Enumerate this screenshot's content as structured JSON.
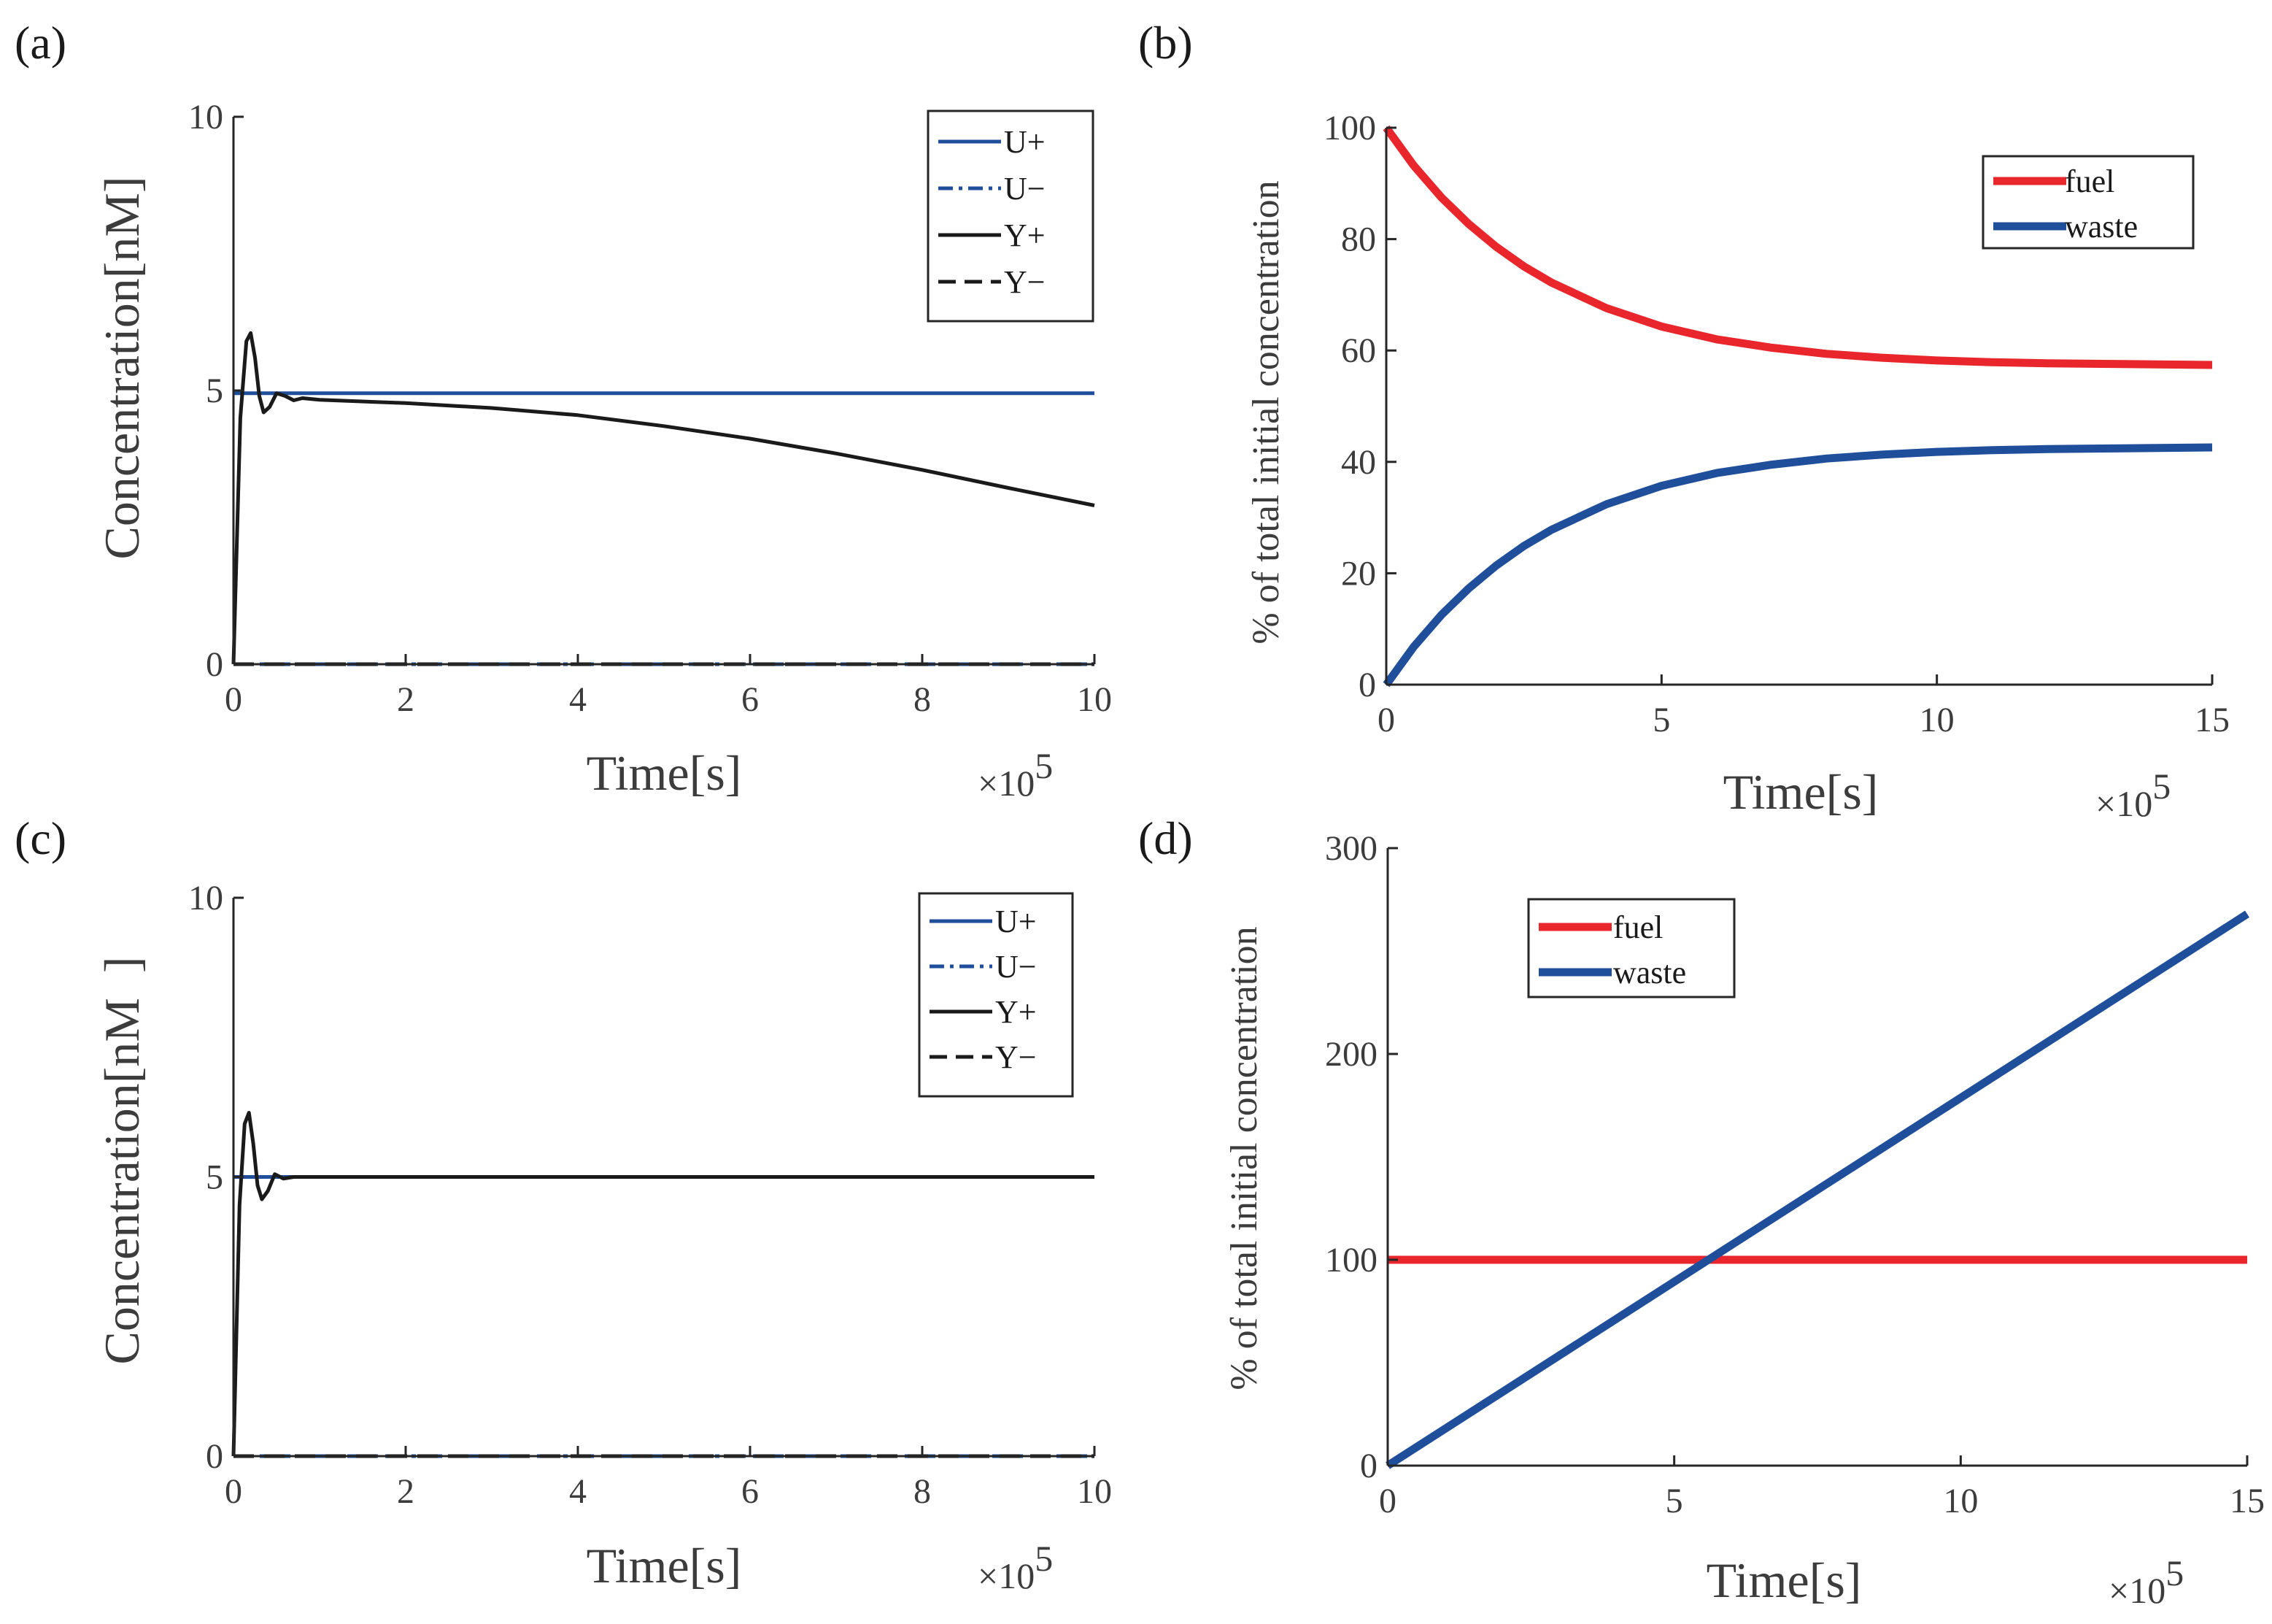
{
  "figure": {
    "panel_labels": [
      "(a)",
      "(b)",
      "(c)",
      "(d)"
    ],
    "colors": {
      "blue": "#1f4e9a",
      "black": "#1a1a1a",
      "red": "#e8262b"
    }
  },
  "chart_data": [
    {
      "id": "a",
      "type": "line",
      "panel_label": "(a)",
      "xlabel": "Time[s]",
      "ylabel": "Concentration[nM]",
      "x_multiplier": "×10",
      "x_multiplier_exponent": "5",
      "xlim": [
        0,
        10
      ],
      "ylim": [
        0,
        10
      ],
      "xticks": [
        0,
        2,
        4,
        6,
        8,
        10
      ],
      "yticks": [
        0,
        5,
        10
      ],
      "legend_position": "top-right",
      "series": [
        {
          "name": "U+",
          "color": "#1f4e9a",
          "dash": "solid",
          "x": [
            0,
            10
          ],
          "y": [
            4.95,
            4.95
          ]
        },
        {
          "name": "U−",
          "color": "#1f4e9a",
          "dash": "dashdot",
          "x": [
            0,
            10
          ],
          "y": [
            0,
            0
          ]
        },
        {
          "name": "Y+",
          "color": "#1a1a1a",
          "dash": "solid",
          "x": [
            0,
            0.08,
            0.15,
            0.2,
            0.25,
            0.3,
            0.35,
            0.42,
            0.5,
            0.6,
            0.7,
            0.8,
            1,
            2,
            3,
            4,
            5,
            6,
            7,
            8,
            9,
            10
          ],
          "y": [
            0,
            4.5,
            5.9,
            6.05,
            5.6,
            4.9,
            4.6,
            4.7,
            4.95,
            4.9,
            4.82,
            4.86,
            4.83,
            4.77,
            4.68,
            4.55,
            4.35,
            4.12,
            3.85,
            3.55,
            3.22,
            2.9
          ]
        },
        {
          "name": "Y−",
          "color": "#1a1a1a",
          "dash": "dashed",
          "x": [
            0,
            10
          ],
          "y": [
            0,
            0
          ]
        }
      ]
    },
    {
      "id": "b",
      "type": "line",
      "panel_label": "(b)",
      "xlabel": "Time[s]",
      "ylabel": "% of total initial concentration",
      "x_multiplier": "×10",
      "x_multiplier_exponent": "5",
      "xlim": [
        0,
        15
      ],
      "ylim": [
        0,
        100
      ],
      "xticks": [
        0,
        5,
        10,
        15
      ],
      "yticks": [
        0,
        20,
        40,
        60,
        80,
        100
      ],
      "legend_position": "top-right",
      "series": [
        {
          "name": "fuel",
          "color": "#e8262b",
          "x": [
            0,
            0.5,
            1,
            1.5,
            2,
            2.5,
            3,
            4,
            5,
            6,
            7,
            8,
            9,
            10,
            11,
            12,
            13,
            14,
            15
          ],
          "y": [
            100,
            93.2,
            87.5,
            82.7,
            78.6,
            75.1,
            72.2,
            67.6,
            64.3,
            62.0,
            60.5,
            59.4,
            58.7,
            58.2,
            57.9,
            57.7,
            57.6,
            57.5,
            57.4
          ]
        },
        {
          "name": "waste",
          "color": "#1f4e9a",
          "x": [
            0,
            0.5,
            1,
            1.5,
            2,
            2.5,
            3,
            4,
            5,
            6,
            7,
            8,
            9,
            10,
            11,
            12,
            13,
            14,
            15
          ],
          "y": [
            0,
            6.8,
            12.5,
            17.3,
            21.4,
            24.9,
            27.8,
            32.4,
            35.7,
            38.0,
            39.5,
            40.6,
            41.3,
            41.8,
            42.1,
            42.3,
            42.4,
            42.5,
            42.6
          ]
        }
      ]
    },
    {
      "id": "c",
      "type": "line",
      "panel_label": "(c)",
      "xlabel": "Time[s]",
      "ylabel": "Concentration[nM",
      "ylabel_bracket": "]",
      "x_multiplier": "×10",
      "x_multiplier_exponent": "5",
      "xlim": [
        0,
        10
      ],
      "ylim": [
        0,
        10
      ],
      "xticks": [
        0,
        2,
        4,
        6,
        8,
        10
      ],
      "yticks": [
        0,
        5,
        10
      ],
      "legend_position": "top-right",
      "series": [
        {
          "name": "U+",
          "color": "#1f4e9a",
          "dash": "solid",
          "x": [
            0,
            10
          ],
          "y": [
            5.0,
            5.0
          ]
        },
        {
          "name": "U−",
          "color": "#1f4e9a",
          "dash": "dashdot",
          "x": [
            0,
            10
          ],
          "y": [
            0,
            0
          ]
        },
        {
          "name": "Y+",
          "color": "#1a1a1a",
          "dash": "solid",
          "x": [
            0,
            0.07,
            0.13,
            0.18,
            0.23,
            0.28,
            0.33,
            0.4,
            0.48,
            0.58,
            0.7,
            1,
            10
          ],
          "y": [
            0,
            4.5,
            5.95,
            6.15,
            5.6,
            4.85,
            4.6,
            4.75,
            5.05,
            4.97,
            5.0,
            5.0,
            5.0
          ]
        },
        {
          "name": "Y−",
          "color": "#1a1a1a",
          "dash": "dashed",
          "x": [
            0,
            10
          ],
          "y": [
            0,
            0
          ]
        }
      ]
    },
    {
      "id": "d",
      "type": "line",
      "panel_label": "(d)",
      "xlabel": "Time[s]",
      "ylabel": "% of total initial concentration",
      "x_multiplier": "×10",
      "x_multiplier_exponent": "5",
      "xlim": [
        0,
        15
      ],
      "ylim": [
        0,
        300
      ],
      "xticks": [
        0,
        5,
        10,
        15
      ],
      "yticks": [
        0,
        100,
        200,
        300
      ],
      "legend_position": "top-left",
      "series": [
        {
          "name": "fuel",
          "color": "#e8262b",
          "x": [
            0,
            15
          ],
          "y": [
            100,
            100
          ]
        },
        {
          "name": "waste",
          "color": "#1f4e9a",
          "x": [
            0,
            15
          ],
          "y": [
            0,
            268
          ]
        }
      ]
    }
  ]
}
